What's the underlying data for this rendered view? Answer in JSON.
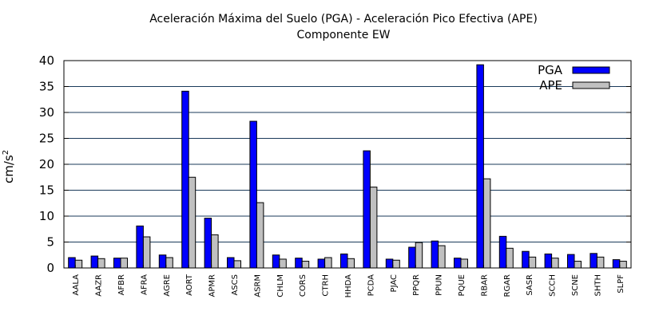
{
  "chart_data": {
    "type": "bar",
    "title": "Aceleración Máxima del Suelo (PGA) -  Aceleración Pico Efectiva (APE)",
    "subtitle": "Componente EW",
    "ylabel": "cm/s",
    "ylabel_sup": "2",
    "ylim": [
      0,
      40
    ],
    "yticks": [
      0,
      5,
      10,
      15,
      20,
      25,
      30,
      35,
      40
    ],
    "grid": "horizontal",
    "legend": "top-right",
    "categories": [
      "AALA",
      "AAZR",
      "AFBR",
      "AFRA",
      "AGRE",
      "AORT",
      "APMR",
      "ASCS",
      "ASRM",
      "CHLM",
      "CORS",
      "CTRH",
      "HHDA",
      "PCDA",
      "PJAC",
      "PPQR",
      "PPUN",
      "PQUE",
      "RBAR",
      "RGAR",
      "SASR",
      "SCCH",
      "SCNE",
      "SHTH",
      "SLPF"
    ],
    "series": [
      {
        "name": "PGA",
        "color": "#0000ff",
        "values": [
          2.0,
          2.3,
          1.9,
          8.1,
          2.5,
          34.1,
          9.6,
          2.0,
          28.3,
          2.5,
          1.9,
          1.7,
          2.7,
          22.6,
          1.7,
          4.0,
          5.2,
          1.9,
          39.2,
          6.1,
          3.2,
          2.7,
          2.6,
          2.8,
          1.6
        ]
      },
      {
        "name": "APE",
        "color": "#c0c0c0",
        "values": [
          1.5,
          1.8,
          1.9,
          6.0,
          2.0,
          17.5,
          6.4,
          1.4,
          12.6,
          1.7,
          1.3,
          2.0,
          1.8,
          15.6,
          1.5,
          4.9,
          4.3,
          1.7,
          17.2,
          3.8,
          2.1,
          1.9,
          1.3,
          2.1,
          1.3
        ]
      }
    ]
  }
}
